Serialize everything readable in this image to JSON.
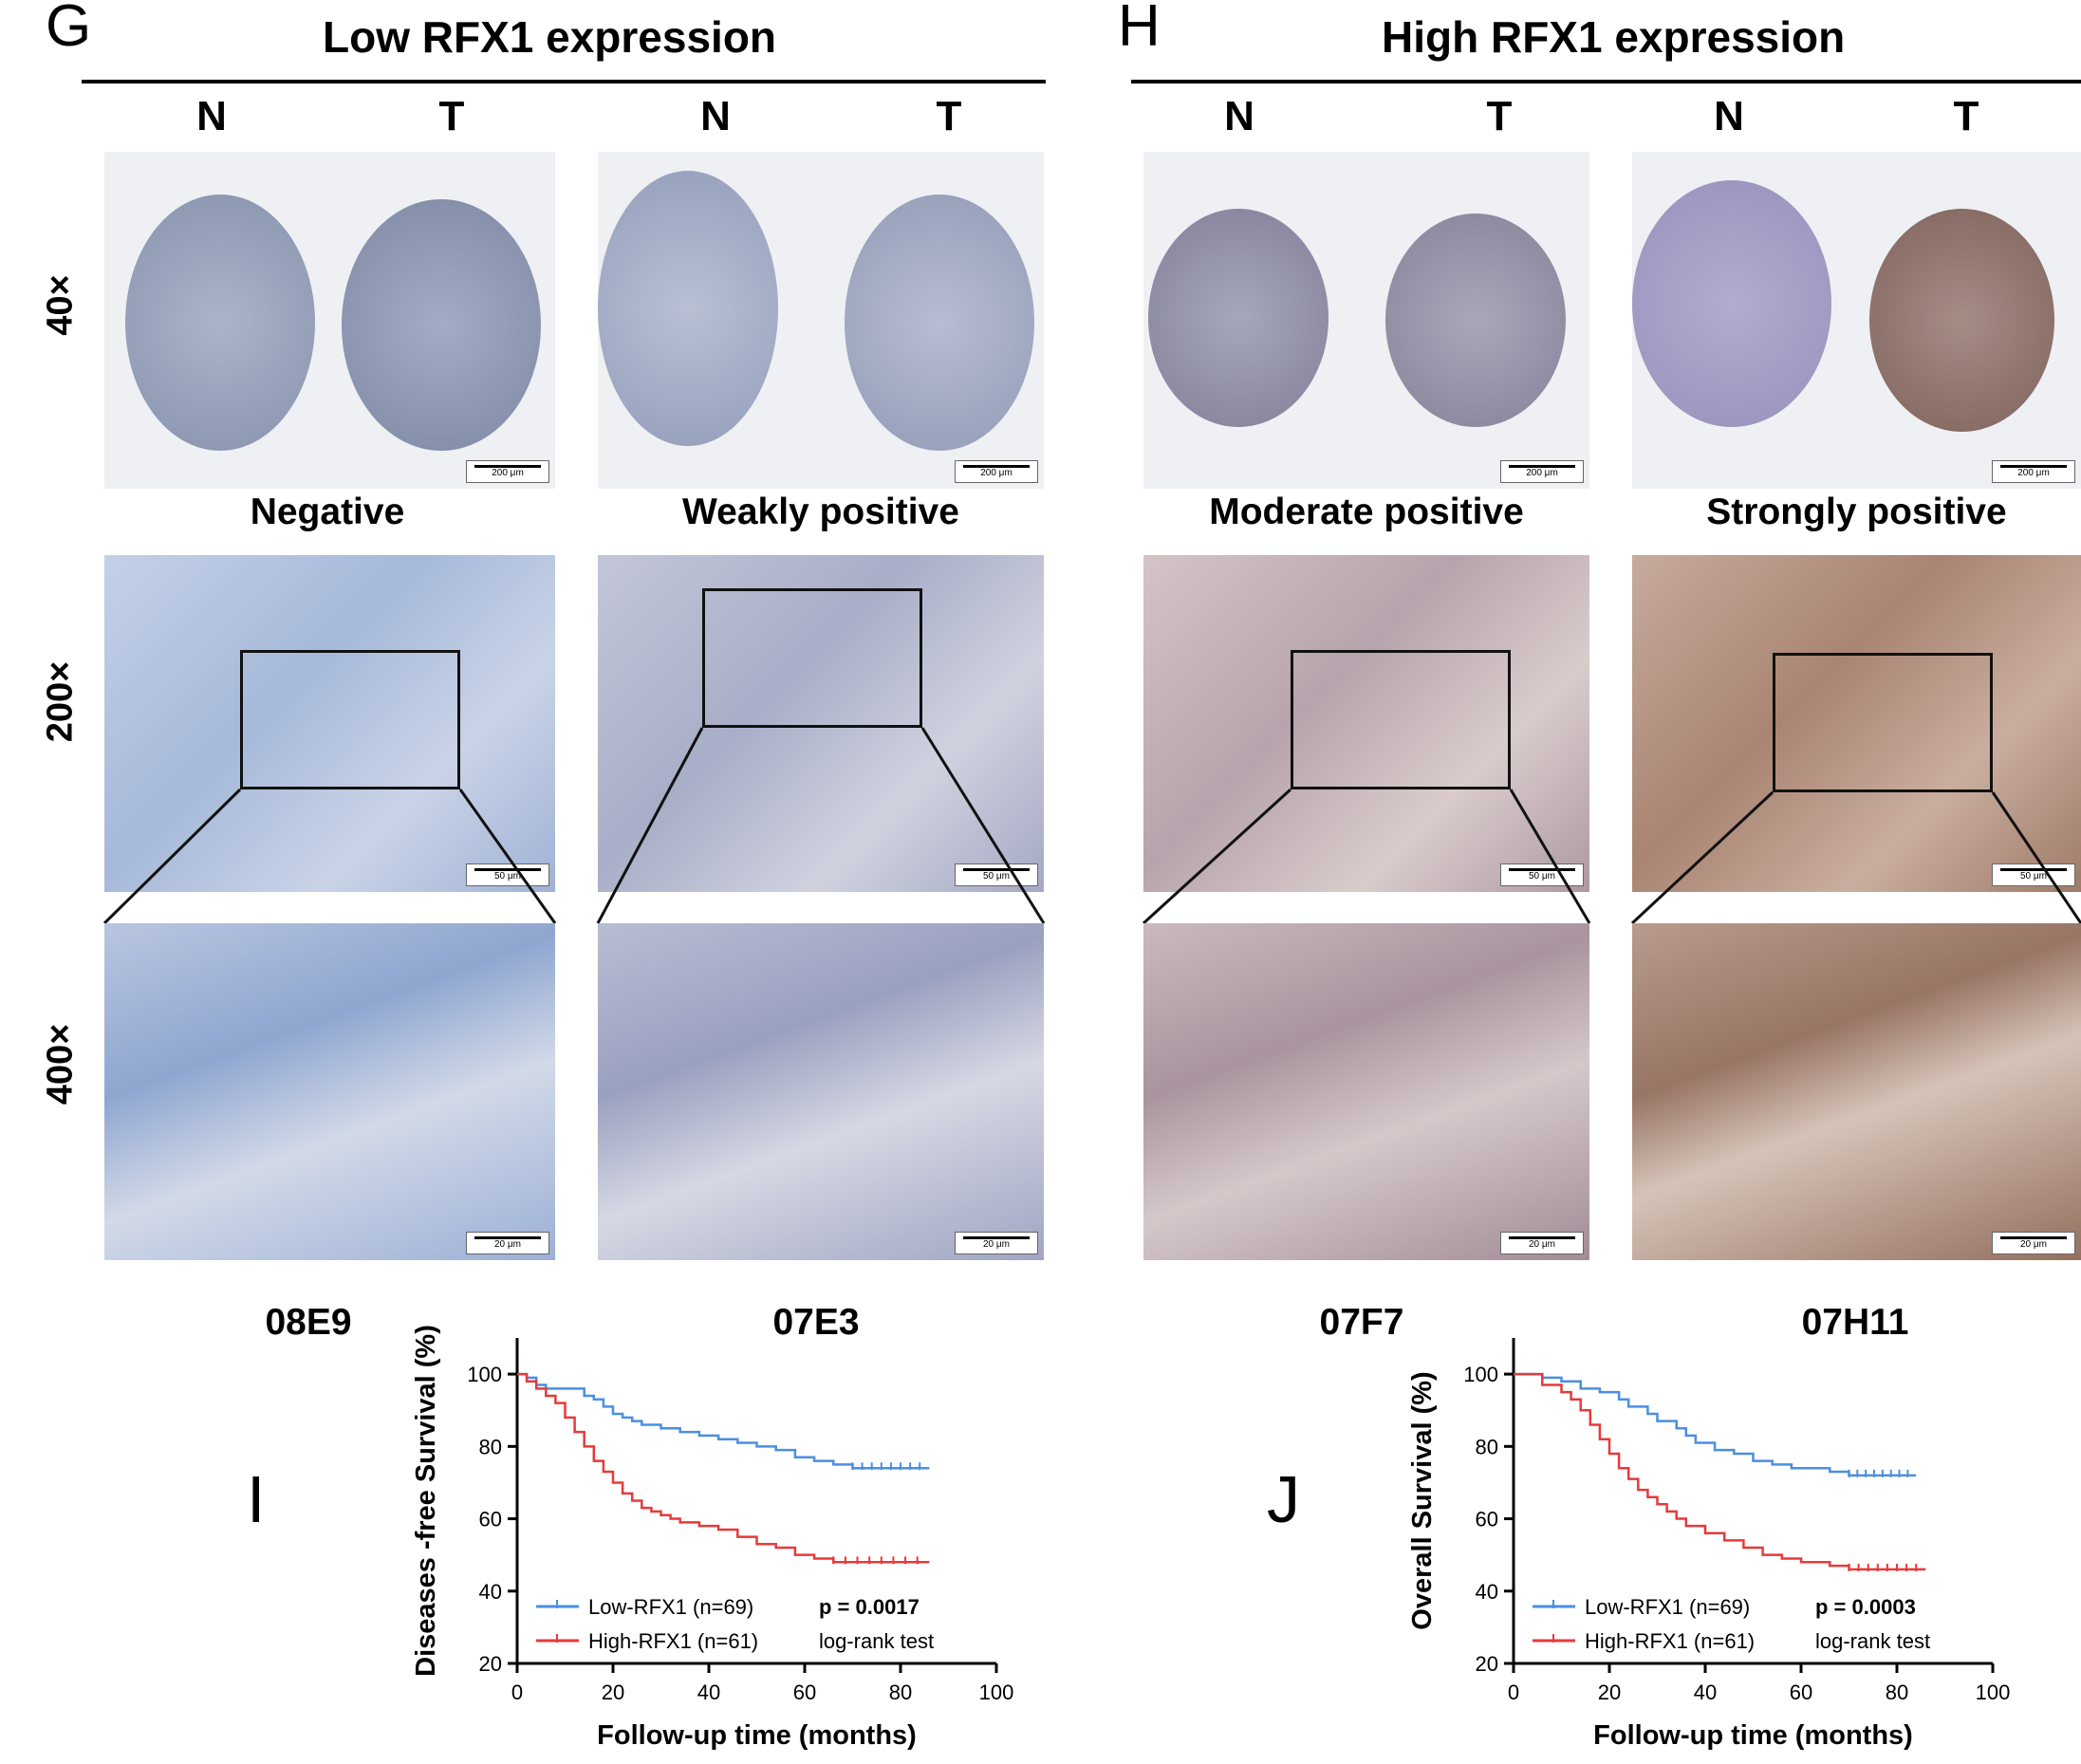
{
  "panels": {
    "G": {
      "letter": "G",
      "title": "Low RFX1 expression"
    },
    "H": {
      "letter": "H",
      "title": "High RFX1 expression"
    },
    "I": {
      "letter": "I"
    },
    "J": {
      "letter": "J"
    }
  },
  "nt_labels": [
    "N",
    "T",
    "N",
    "T",
    "N",
    "T",
    "N",
    "T"
  ],
  "magnifications": [
    "40×",
    "200×",
    "400×"
  ],
  "grades": [
    "Negative",
    "Weakly positive",
    "Moderate positive",
    "Strongly positive"
  ],
  "cases": [
    "08E9",
    "07E3",
    "07F7",
    "07H11"
  ],
  "scale_bars": {
    "row40": "200 μm",
    "row200": "50 μm",
    "row400": "20 μm"
  },
  "stain_colors": {
    "negative": "#b7c6de",
    "weak": "#bcc2d6",
    "moderate": "#c9b4b8",
    "strong": "#b99886",
    "tissue_background": "#eef0f3"
  },
  "chart_data": [
    {
      "type": "line",
      "subtype": "kaplan-meier",
      "xlabel": "Follow-up time (months)",
      "ylabel": "Diseases -free Survival (%)",
      "xlim": [
        0,
        100
      ],
      "ylim": [
        20,
        110
      ],
      "xticks": [
        0,
        20,
        40,
        60,
        80,
        100
      ],
      "yticks": [
        20,
        40,
        60,
        80,
        100
      ],
      "legend_position": "bottom-left",
      "stat_text": "p = ",
      "p_value": "0.0017",
      "test": "log-rank test",
      "series": [
        {
          "name": "Low-RFX1 (n=69)",
          "color": "#4a8fe0",
          "x": [
            0,
            2,
            4,
            6,
            14,
            16,
            18,
            20,
            22,
            24,
            26,
            30,
            34,
            38,
            42,
            46,
            50,
            54,
            58,
            62,
            66,
            70,
            86
          ],
          "y": [
            100,
            99,
            97,
            96,
            94,
            93,
            91,
            89,
            88,
            87,
            86,
            85,
            84,
            83,
            82,
            81,
            80,
            79,
            77,
            76,
            75,
            74,
            74
          ]
        },
        {
          "name": "High-RFX1 (n=61)",
          "color": "#e63a3a",
          "x": [
            0,
            2,
            4,
            6,
            8,
            10,
            12,
            14,
            16,
            18,
            20,
            22,
            24,
            26,
            28,
            30,
            32,
            34,
            38,
            42,
            46,
            50,
            54,
            58,
            62,
            66,
            86
          ],
          "y": [
            100,
            98,
            96,
            94,
            92,
            88,
            84,
            80,
            76,
            73,
            70,
            67,
            65,
            63,
            62,
            61,
            60,
            59,
            58,
            57,
            55,
            53,
            52,
            50,
            49,
            48,
            48
          ]
        }
      ]
    },
    {
      "type": "line",
      "subtype": "kaplan-meier",
      "xlabel": "Follow-up time (months)",
      "ylabel": "Overall Survival (%)",
      "xlim": [
        0,
        100
      ],
      "ylim": [
        20,
        110
      ],
      "xticks": [
        0,
        20,
        40,
        60,
        80,
        100
      ],
      "yticks": [
        20,
        40,
        60,
        80,
        100
      ],
      "legend_position": "bottom-left",
      "stat_text": "p = ",
      "p_value": "0.0003",
      "test": "log-rank test",
      "series": [
        {
          "name": "Low-RFX1 (n=69)",
          "color": "#4a8fe0",
          "x": [
            0,
            6,
            10,
            14,
            18,
            22,
            24,
            28,
            30,
            34,
            36,
            38,
            42,
            46,
            50,
            54,
            58,
            62,
            66,
            70,
            84
          ],
          "y": [
            100,
            99,
            98,
            96,
            95,
            93,
            91,
            89,
            87,
            85,
            83,
            81,
            79,
            78,
            76,
            75,
            74,
            74,
            73,
            72,
            72
          ]
        },
        {
          "name": "High-RFX1 (n=61)",
          "color": "#e63a3a",
          "x": [
            0,
            6,
            10,
            12,
            14,
            16,
            18,
            20,
            22,
            24,
            26,
            28,
            30,
            32,
            34,
            36,
            40,
            44,
            48,
            52,
            56,
            60,
            66,
            70,
            86
          ],
          "y": [
            100,
            97,
            95,
            93,
            90,
            86,
            82,
            78,
            74,
            71,
            68,
            66,
            64,
            62,
            60,
            58,
            56,
            54,
            52,
            50,
            49,
            48,
            47,
            46,
            46
          ]
        }
      ]
    }
  ]
}
